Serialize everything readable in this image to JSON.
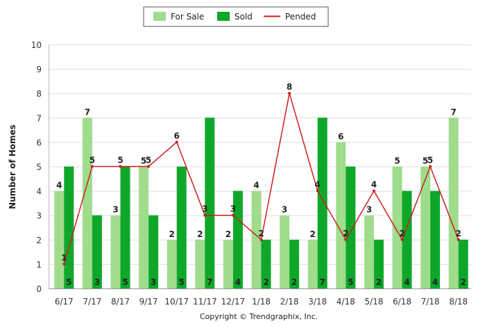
{
  "chart_data": {
    "type": "bar",
    "categories": [
      "6/17",
      "7/17",
      "8/17",
      "9/17",
      "10/17",
      "11/17",
      "12/17",
      "1/18",
      "2/18",
      "3/18",
      "4/18",
      "5/18",
      "6/18",
      "7/18",
      "8/18"
    ],
    "series": [
      {
        "name": "For Sale",
        "kind": "bar",
        "color": "#9fdc8c",
        "values": [
          4,
          7,
          3,
          5,
          2,
          2,
          2,
          4,
          3,
          2,
          6,
          3,
          5,
          5,
          7
        ]
      },
      {
        "name": "Sold",
        "kind": "bar",
        "color": "#0ea72a",
        "values": [
          5,
          3,
          5,
          3,
          5,
          7,
          4,
          2,
          2,
          7,
          5,
          2,
          4,
          4,
          2
        ]
      },
      {
        "name": "Pended",
        "kind": "line",
        "color": "#cc1f1f",
        "values": [
          1,
          5,
          5,
          5,
          6,
          3,
          3,
          2,
          8,
          4,
          2,
          4,
          2,
          5,
          2
        ]
      }
    ],
    "xlabel": "",
    "ylabel": "Number of Homes",
    "ylim": [
      0,
      10
    ],
    "yticks": [
      0,
      1,
      2,
      3,
      4,
      5,
      6,
      7,
      8,
      9,
      10
    ],
    "grid": true,
    "legend": "top-center"
  },
  "footer": {
    "copyright": "Copyright © Trendgraphix, Inc."
  }
}
